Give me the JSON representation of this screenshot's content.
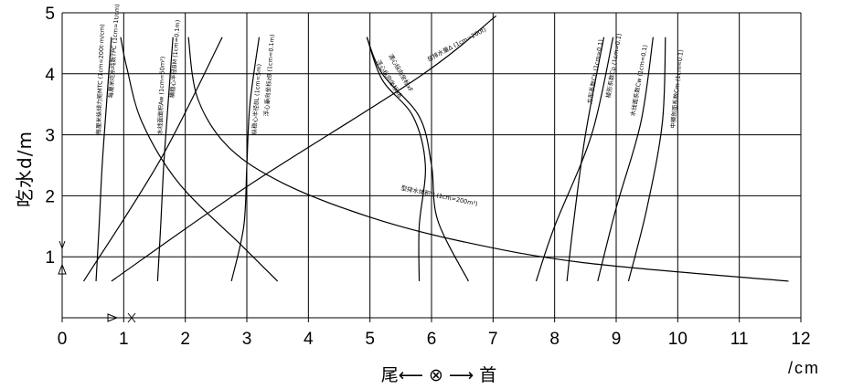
{
  "chart_data": {
    "type": "line",
    "title": "",
    "ylabel": "吃水d/m",
    "xlabel": "尾⟵ ⊗ ⟶ 首",
    "x_unit": "/cm",
    "xlim": [
      0,
      12
    ],
    "ylim": [
      0,
      5
    ],
    "x_ticks": [
      "0",
      "1",
      "2",
      "3",
      "4",
      "5",
      "6",
      "7",
      "8",
      "9",
      "10",
      "11",
      "12"
    ],
    "y_ticks": [
      "1",
      "2",
      "3",
      "4",
      "5"
    ],
    "grid": true,
    "axis_markers": {
      "y": "Y",
      "x": "X"
    },
    "series": [
      {
        "name": "每厘米纵倾力矩MTC (1cm=200t·m/cm)",
        "points": [
          [
            0.55,
            0.6
          ],
          [
            0.6,
            1.5
          ],
          [
            0.65,
            2.5
          ],
          [
            0.72,
            3.5
          ],
          [
            0.8,
            4.6
          ]
        ]
      },
      {
        "name": "(1cm=1t/cm)",
        "points": [
          [
            0.95,
            4.6
          ],
          [
            1.05,
            4.1
          ],
          [
            1.3,
            3.2
          ],
          [
            1.9,
            2.2
          ],
          [
            2.9,
            1.2
          ],
          [
            3.5,
            0.6
          ]
        ]
      },
      {
        "name": "水线面面积Aw (1cm=50m²)",
        "points": [
          [
            1.55,
            0.6
          ],
          [
            1.6,
            1.5
          ],
          [
            1.65,
            2.5
          ],
          [
            1.72,
            3.5
          ],
          [
            1.8,
            4.6
          ]
        ]
      },
      {
        "name": "(1cm=0.1m)",
        "points": [
          [
            2.05,
            4.6
          ],
          [
            2.2,
            3.6
          ],
          [
            2.7,
            2.8
          ],
          [
            3.6,
            2.2
          ],
          [
            5.0,
            1.65
          ],
          [
            6.5,
            1.25
          ],
          [
            8.5,
            0.9
          ],
          [
            11.8,
            0.6
          ]
        ]
      },
      {
        "name": "(1cm=0.1m)",
        "points": [
          [
            2.75,
            0.6
          ],
          [
            2.95,
            1.5
          ],
          [
            3.0,
            2.5
          ],
          [
            3.05,
            3.5
          ],
          [
            3.2,
            4.6
          ]
        ]
      },
      {
        "name": "型排水体积▽ (1cm=200m³)",
        "points": [
          [
            0.35,
            0.6
          ],
          [
            1.6,
            2.6
          ],
          [
            2.6,
            4.6
          ]
        ]
      },
      {
        "name": "总排水量Δ (1cm=200t)",
        "points": [
          [
            0.8,
            0.6
          ],
          [
            3.0,
            2.15
          ],
          [
            5.8,
            3.95
          ],
          [
            7.05,
            4.95
          ]
        ]
      },
      {
        "name": "浮心纵向坐标xB",
        "points": [
          [
            4.95,
            4.6
          ],
          [
            5.2,
            3.9
          ],
          [
            5.7,
            3.3
          ],
          [
            5.9,
            2.5
          ],
          [
            5.8,
            1.5
          ],
          [
            5.8,
            0.6
          ]
        ]
      },
      {
        "name": "漂心纵向坐标xF",
        "points": [
          [
            4.95,
            4.6
          ],
          [
            5.2,
            4.0
          ],
          [
            5.8,
            3.3
          ],
          [
            6.0,
            2.5
          ],
          [
            6.1,
            1.6
          ],
          [
            6.6,
            0.6
          ]
        ]
      },
      {
        "name": "方形系数Cb (1cm=0.1)",
        "points": [
          [
            8.95,
            4.6
          ],
          [
            8.6,
            3.0
          ],
          [
            8.0,
            1.5
          ],
          [
            7.7,
            0.6
          ]
        ]
      },
      {
        "name": "中横剖面系数Cm (1cm=0.1)",
        "points": [
          [
            8.8,
            4.6
          ],
          [
            8.5,
            3.0
          ],
          [
            8.3,
            1.5
          ],
          [
            8.2,
            0.6
          ]
        ]
      },
      {
        "name": "水线面系数Cw (1cm=0.1)",
        "points": [
          [
            9.6,
            4.6
          ],
          [
            9.4,
            3.2
          ],
          [
            9.0,
            1.8
          ],
          [
            8.7,
            0.6
          ]
        ]
      },
      {
        "name": "(1cm=0.1)",
        "points": [
          [
            9.8,
            4.6
          ],
          [
            9.75,
            3.2
          ],
          [
            9.5,
            1.8
          ],
          [
            9.2,
            0.6
          ]
        ]
      }
    ],
    "curve_labels": [
      "每厘米纵倾力矩MTC (1cm=200t·m/cm)",
      "每厘米吃水吨数TPC (1cm=1t/cm)",
      "水线面面积Aw (1cm=50m²)",
      "横稳心半径BM (1cm=0.1m)",
      "纵稳心半径BL (1cm=5m)",
      "浮心垂向坐标zB (1cm=0.1m)",
      "型排水体积▽ (1cm=200m³)",
      "总排水量Δ (1cm=200t)",
      "浮心纵向坐标xB",
      "漂心纵向坐标xF",
      "方形系数Cb (1cm=0.1)",
      "棱形系数Cp (1cm=0.1)",
      "水线面系数Cw (1cm=0.1)",
      "中横剖面系数Cm (1cm=0.1)"
    ]
  }
}
